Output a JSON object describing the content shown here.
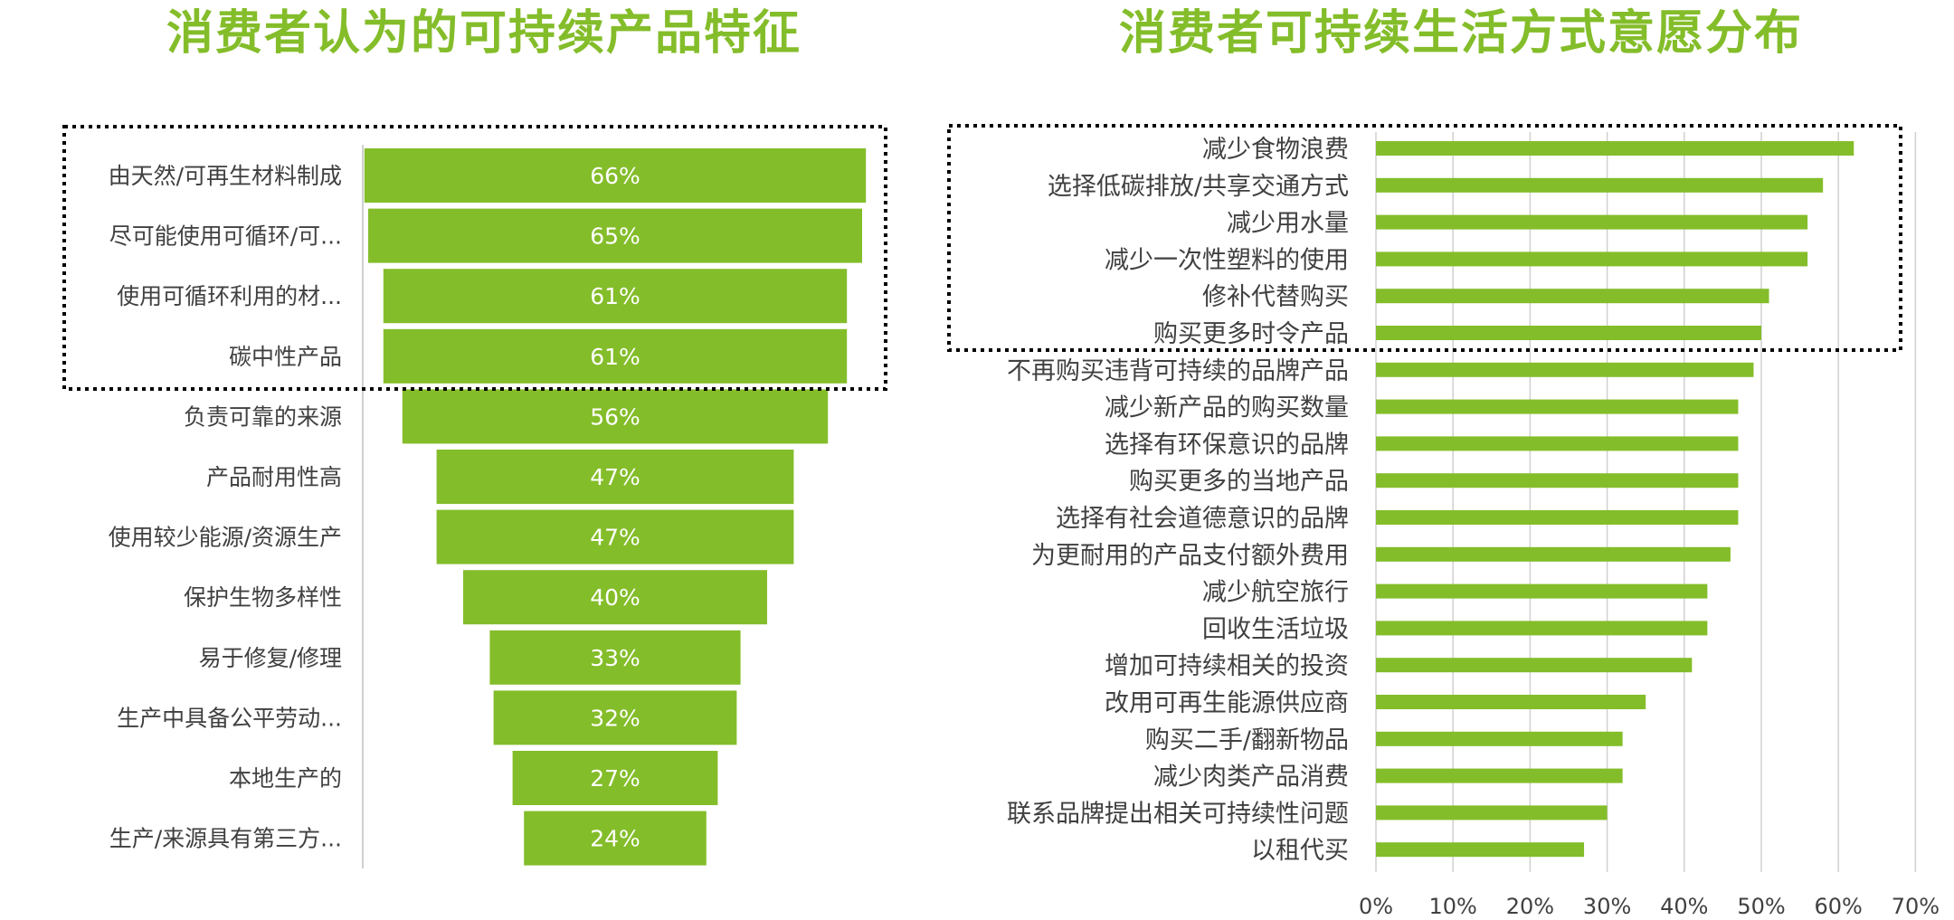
{
  "theme": {
    "accent": "#84bd2a",
    "bar_label_color": "#ffffff",
    "text_color": "#404040",
    "axis_color": "#d0d0d0",
    "highlight_border": "#000000"
  },
  "titles": {
    "left": "消费者认为的可持续产品特征",
    "right": "消费者可持续生活方式意愿分布"
  },
  "chart_data": [
    {
      "type": "bar",
      "style": "funnel",
      "title": "消费者认为的可持续产品特征",
      "categories": [
        "由天然/可再生材料制成",
        "尽可能使用可循环/可...",
        "使用可循环利用的材...",
        "碳中性产品",
        "负责可靠的来源",
        "产品耐用性高",
        "使用较少能源/资源生产",
        "保护生物多样性",
        "易于修复/修理",
        "生产中具备公平劳动...",
        "本地生产的",
        "生产/来源具有第三方..."
      ],
      "values": [
        66,
        65,
        61,
        61,
        56,
        47,
        47,
        40,
        33,
        32,
        27,
        24
      ],
      "value_labels": [
        "66%",
        "65%",
        "61%",
        "61%",
        "56%",
        "47%",
        "47%",
        "40%",
        "33%",
        "32%",
        "27%",
        "24%"
      ],
      "highlighted_top": 4
    },
    {
      "type": "bar",
      "orientation": "horizontal",
      "title": "消费者可持续生活方式意愿分布",
      "categories": [
        "减少食物浪费",
        "选择低碳排放/共享交通方式",
        "减少用水量",
        "减少一次性塑料的使用",
        "修补代替购买",
        "购买更多时令产品",
        "不再购买违背可持续的品牌产品",
        "减少新产品的购买数量",
        "选择有环保意识的品牌",
        "购买更多的当地产品",
        "选择有社会道德意识的品牌",
        "为更耐用的产品支付额外费用",
        "减少航空旅行",
        "回收生活垃圾",
        "增加可持续相关的投资",
        "改用可再生能源供应商",
        "购买二手/翻新物品",
        "减少肉类产品消费",
        "联系品牌提出相关可持续性问题",
        "以租代买"
      ],
      "values": [
        62,
        58,
        56,
        56,
        51,
        50,
        49,
        47,
        47,
        47,
        47,
        46,
        43,
        43,
        41,
        35,
        32,
        32,
        30,
        27
      ],
      "xlim": [
        0,
        70
      ],
      "x_ticks": [
        "0%",
        "10%",
        "20%",
        "30%",
        "40%",
        "50%",
        "60%",
        "70%"
      ],
      "grid": true,
      "highlighted_top": 6
    }
  ]
}
